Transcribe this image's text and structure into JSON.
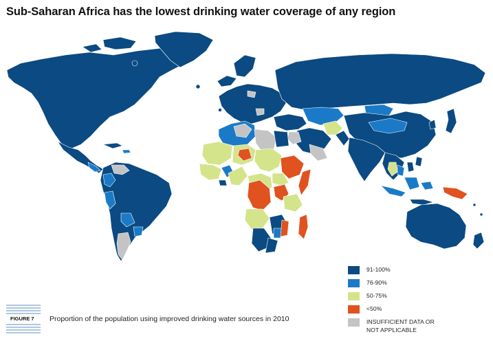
{
  "title": "Sub-Saharan Africa has the lowest drinking water coverage of any region",
  "colors": {
    "c91_100": "#0b4a82",
    "c76_90": "#1b7ac8",
    "c50_75": "#d4e48b",
    "clt50": "#e0521f",
    "insufficient": "#c4c4c4",
    "ocean": "#ffffff",
    "border": "#ffffff"
  },
  "legend": {
    "items": [
      {
        "label": "91-100%",
        "color": "#0b4a82"
      },
      {
        "label": "76-90%",
        "color": "#1b7ac8"
      },
      {
        "label": "50-75%",
        "color": "#d4e48b"
      },
      {
        "label": "<50%",
        "color": "#e0521f"
      },
      {
        "label": "INSUFFICIENT DATA OR NOT APPLICABLE",
        "label_line1": "INSUFFICIENT DATA OR",
        "label_line2": "NOT APPLICABLE",
        "color": "#c4c4c4"
      }
    ]
  },
  "figure": {
    "label": "FIGURE 7",
    "caption": "Proportion of the population using improved drinking water sources in 2010"
  }
}
